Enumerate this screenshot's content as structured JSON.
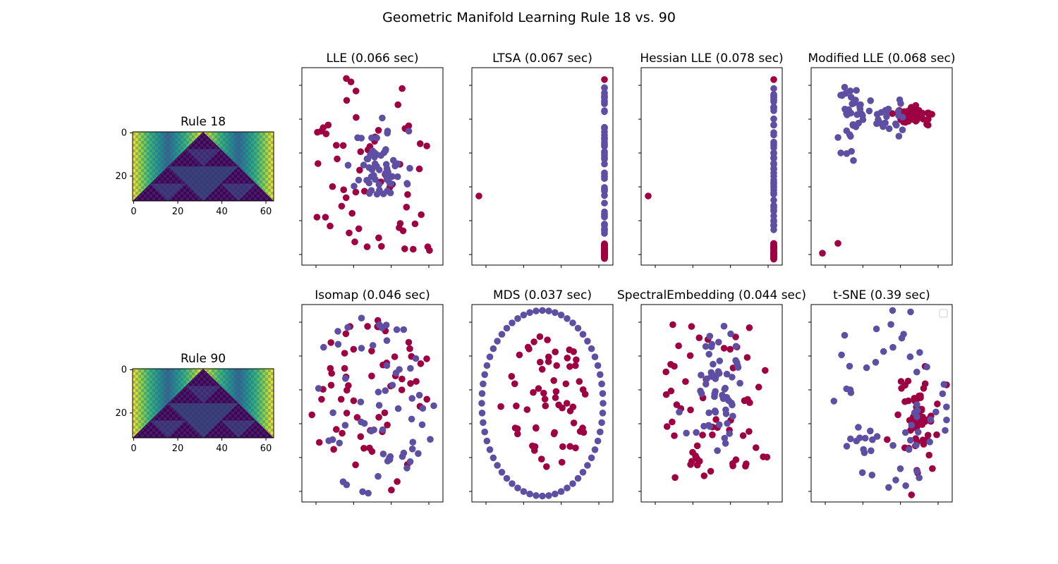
{
  "figure": {
    "title": "Geometric Manifold Learning Rule 18 vs. 90"
  },
  "colors": {
    "class_a": "#9e0142",
    "class_b": "#5e4fa2",
    "axes_edge": "#000000",
    "image_low": "#440154",
    "image_high": "#fde725"
  },
  "images": [
    {
      "title": "Rule 18",
      "colormap": "viridis",
      "xticks": [
        "0",
        "20",
        "40",
        "60"
      ],
      "yticks": [
        "0",
        "20"
      ]
    },
    {
      "title": "Rule 90",
      "colormap": "viridis",
      "xticks": [
        "0",
        "20",
        "40",
        "60"
      ],
      "yticks": [
        "0",
        "20"
      ]
    }
  ],
  "chart_data": [
    {
      "type": "scatter",
      "title": "LLE (0.066 sec)",
      "seed": 11,
      "pattern": "lle",
      "n": 120
    },
    {
      "type": "scatter",
      "title": "LTSA (0.067 sec)",
      "seed": 23,
      "pattern": "ltsa",
      "n": 120
    },
    {
      "type": "scatter",
      "title": "Hessian LLE (0.078 sec)",
      "seed": 37,
      "pattern": "ltsa",
      "n": 120
    },
    {
      "type": "scatter",
      "title": "Modified LLE (0.068 sec)",
      "seed": 41,
      "pattern": "mlle",
      "n": 120
    },
    {
      "type": "scatter",
      "title": "Isomap (0.046 sec)",
      "seed": 53,
      "pattern": "blob",
      "n": 120
    },
    {
      "type": "scatter",
      "title": "MDS (0.037 sec)",
      "seed": 67,
      "pattern": "mds",
      "n": 120
    },
    {
      "type": "scatter",
      "title": "SpectralEmbedding (0.044 sec)",
      "seed": 79,
      "pattern": "spectral",
      "n": 120
    },
    {
      "type": "scatter",
      "title": "t-SNE (0.39 sec)",
      "seed": 97,
      "pattern": "tsne",
      "n": 120,
      "legend": "empty-top-right"
    }
  ]
}
